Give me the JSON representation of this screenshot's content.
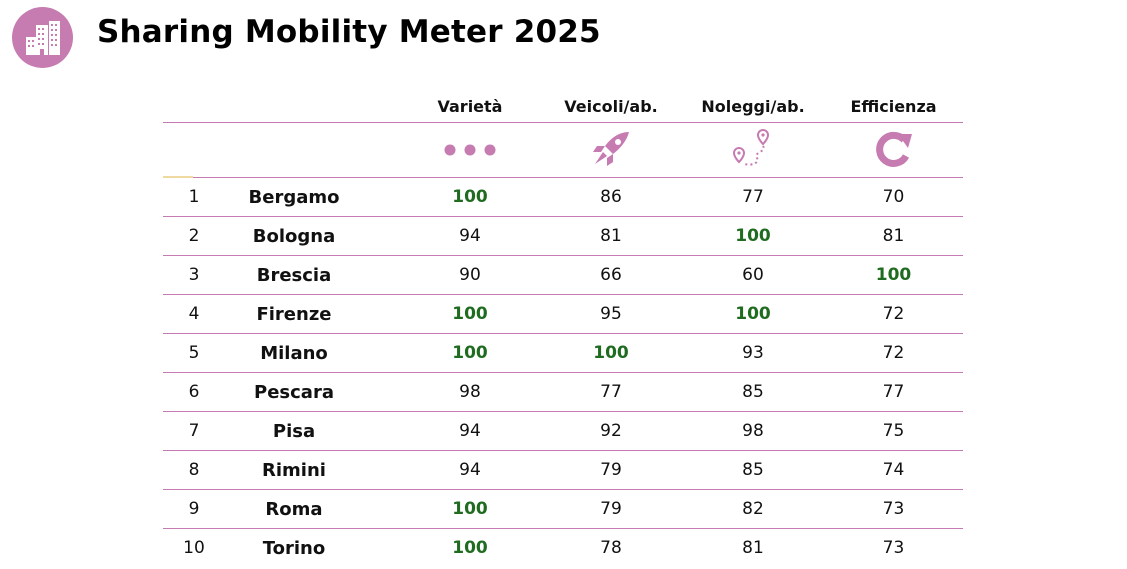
{
  "header": {
    "title": "Sharing Mobility Meter 2025",
    "logo_icon": "city-buildings-icon",
    "logo_color": "#c67bb1"
  },
  "table": {
    "columns": [
      "Varietà",
      "Veicoli/ab.",
      "Noleggi/ab.",
      "Efficienza"
    ],
    "column_icons": [
      "three-dots-icon",
      "rocket-icon",
      "route-pins-icon",
      "refresh-icon"
    ],
    "highlight_color": "#1f6b1f",
    "accent_color": "#c67bb1",
    "rows": [
      {
        "rank": "1",
        "city": "Bergamo",
        "values": [
          "100",
          "86",
          "77",
          "70"
        ],
        "highlight": [
          true,
          false,
          false,
          false
        ]
      },
      {
        "rank": "2",
        "city": "Bologna",
        "values": [
          "94",
          "81",
          "100",
          "81"
        ],
        "highlight": [
          false,
          false,
          true,
          false
        ]
      },
      {
        "rank": "3",
        "city": "Brescia",
        "values": [
          "90",
          "66",
          "60",
          "100"
        ],
        "highlight": [
          false,
          false,
          false,
          true
        ]
      },
      {
        "rank": "4",
        "city": "Firenze",
        "values": [
          "100",
          "95",
          "100",
          "72"
        ],
        "highlight": [
          true,
          false,
          true,
          false
        ]
      },
      {
        "rank": "5",
        "city": "Milano",
        "values": [
          "100",
          "100",
          "93",
          "72"
        ],
        "highlight": [
          true,
          true,
          false,
          false
        ]
      },
      {
        "rank": "6",
        "city": "Pescara",
        "values": [
          "98",
          "77",
          "85",
          "77"
        ],
        "highlight": [
          false,
          false,
          false,
          false
        ]
      },
      {
        "rank": "7",
        "city": "Pisa",
        "values": [
          "94",
          "92",
          "98",
          "75"
        ],
        "highlight": [
          false,
          false,
          false,
          false
        ]
      },
      {
        "rank": "8",
        "city": "Rimini",
        "values": [
          "94",
          "79",
          "85",
          "74"
        ],
        "highlight": [
          false,
          false,
          false,
          false
        ]
      },
      {
        "rank": "9",
        "city": "Roma",
        "values": [
          "100",
          "79",
          "82",
          "73"
        ],
        "highlight": [
          true,
          false,
          false,
          false
        ]
      },
      {
        "rank": "10",
        "city": "Torino",
        "values": [
          "100",
          "78",
          "81",
          "73"
        ],
        "highlight": [
          true,
          false,
          false,
          false
        ]
      }
    ]
  }
}
